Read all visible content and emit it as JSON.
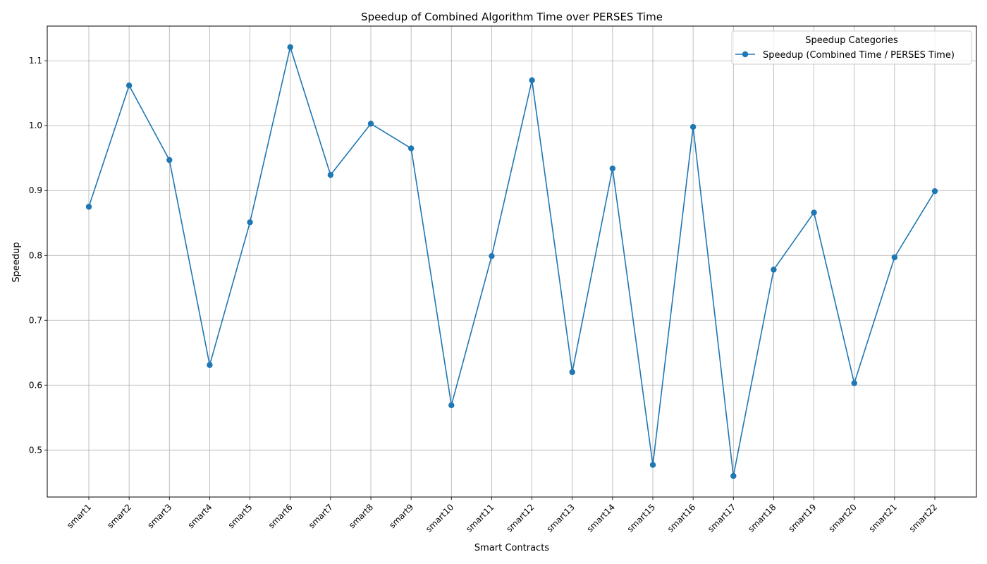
{
  "chart_data": {
    "type": "line",
    "title": "Speedup of Combined Algorithm Time over PERSES Time",
    "xlabel": "Smart Contracts",
    "ylabel": "Speedup",
    "categories": [
      "smart1",
      "smart2",
      "smart3",
      "smart4",
      "smart5",
      "smart6",
      "smart7",
      "smart8",
      "smart9",
      "smart10",
      "smart11",
      "smart12",
      "smart13",
      "smart14",
      "smart15",
      "smart16",
      "smart17",
      "smart18",
      "smart19",
      "smart20",
      "smart21",
      "smart22"
    ],
    "series": [
      {
        "name": "Speedup (Combined Time / PERSES Time)",
        "values": [
          0.875,
          1.062,
          0.947,
          0.631,
          0.851,
          1.121,
          0.924,
          1.003,
          0.965,
          0.569,
          0.799,
          1.07,
          0.62,
          0.934,
          0.477,
          0.998,
          0.46,
          0.778,
          0.866,
          0.603,
          0.797,
          0.899
        ],
        "color": "#1f77b4",
        "marker": "circle"
      }
    ],
    "yticks": [
      "0.5",
      "0.6",
      "0.7",
      "0.8",
      "0.9",
      "1.0",
      "1.1"
    ],
    "ylim": [
      0.4275,
      1.1535
    ],
    "grid": true,
    "legend": {
      "title": "Speedup Categories",
      "placement": "top-right"
    }
  }
}
